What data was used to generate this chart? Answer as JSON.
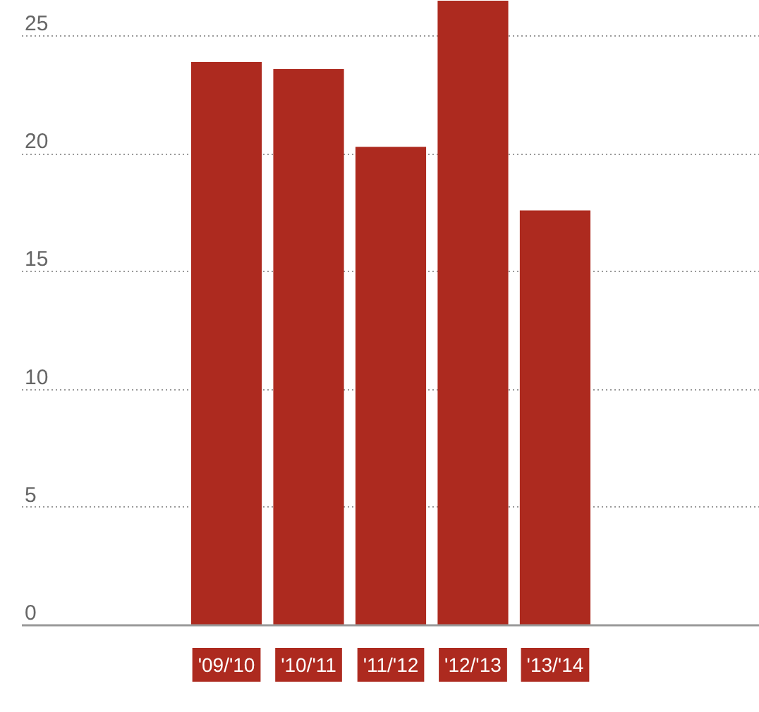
{
  "chart_data": {
    "type": "bar",
    "categories": [
      "'09/'10",
      "'10/'11",
      "'11/'12",
      "'12/'13",
      "'13/'14"
    ],
    "values": [
      23.9,
      23.6,
      20.3,
      26.5,
      17.6
    ],
    "color": "#ad2a1f",
    "ylim": [
      0,
      26.5
    ],
    "yticks": [
      0,
      5,
      10,
      15,
      20,
      25
    ],
    "grid": "y"
  }
}
